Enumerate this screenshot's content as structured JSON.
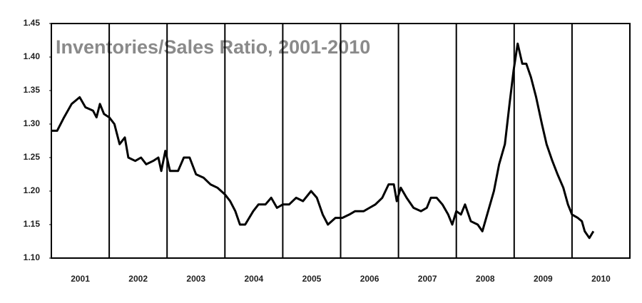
{
  "chart_data": {
    "type": "line",
    "title": "Inventories/Sales Ratio, 2001-2010",
    "x": [
      2001.0,
      2001.1,
      2001.22,
      2001.35,
      2001.49,
      2001.59,
      2001.72,
      2001.78,
      2001.84,
      2001.91,
      2002.0,
      2002.09,
      2002.18,
      2002.27,
      2002.33,
      2002.45,
      2002.55,
      2002.64,
      2002.76,
      2002.85,
      2002.9,
      2002.97,
      2003.05,
      2003.19,
      2003.29,
      2003.39,
      2003.5,
      2003.63,
      2003.75,
      2003.87,
      2004.0,
      2004.09,
      2004.18,
      2004.26,
      2004.35,
      2004.49,
      2004.58,
      2004.7,
      2004.8,
      2004.9,
      2005.0,
      2005.11,
      2005.23,
      2005.35,
      2005.49,
      2005.59,
      2005.69,
      2005.78,
      2005.91,
      2006.03,
      2006.15,
      2006.25,
      2006.4,
      2006.5,
      2006.6,
      2006.72,
      2006.83,
      2006.92,
      2006.97,
      2007.04,
      2007.14,
      2007.26,
      2007.39,
      2007.49,
      2007.56,
      2007.66,
      2007.76,
      2007.86,
      2007.93,
      2008.0,
      2008.08,
      2008.15,
      2008.25,
      2008.37,
      2008.45,
      2008.55,
      2008.65,
      2008.74,
      2008.84,
      2008.92,
      2008.99,
      2009.06,
      2009.14,
      2009.21,
      2009.29,
      2009.38,
      2009.48,
      2009.56,
      2009.66,
      2009.75,
      2009.85,
      2009.93,
      2010.0,
      2010.1,
      2010.17,
      2010.22,
      2010.3,
      2010.37
    ],
    "values": [
      1.29,
      1.29,
      1.31,
      1.33,
      1.34,
      1.325,
      1.32,
      1.31,
      1.33,
      1.315,
      1.31,
      1.3,
      1.27,
      1.28,
      1.25,
      1.245,
      1.25,
      1.24,
      1.245,
      1.25,
      1.23,
      1.26,
      1.23,
      1.23,
      1.25,
      1.25,
      1.225,
      1.22,
      1.21,
      1.205,
      1.195,
      1.185,
      1.17,
      1.15,
      1.15,
      1.17,
      1.18,
      1.18,
      1.19,
      1.175,
      1.18,
      1.18,
      1.19,
      1.185,
      1.2,
      1.19,
      1.165,
      1.15,
      1.16,
      1.16,
      1.165,
      1.17,
      1.17,
      1.175,
      1.18,
      1.19,
      1.21,
      1.21,
      1.185,
      1.205,
      1.19,
      1.175,
      1.17,
      1.175,
      1.19,
      1.19,
      1.18,
      1.165,
      1.15,
      1.17,
      1.165,
      1.18,
      1.155,
      1.15,
      1.14,
      1.17,
      1.2,
      1.24,
      1.27,
      1.33,
      1.38,
      1.42,
      1.39,
      1.39,
      1.37,
      1.34,
      1.3,
      1.27,
      1.245,
      1.225,
      1.205,
      1.18,
      1.165,
      1.16,
      1.155,
      1.14,
      1.13,
      1.14
    ],
    "color": "#000000",
    "xlim": [
      2001,
      2011
    ],
    "xticks": [
      {
        "value": 2001.5,
        "label": "2001"
      },
      {
        "value": 2002.5,
        "label": "2002"
      },
      {
        "value": 2003.5,
        "label": "2003"
      },
      {
        "value": 2004.5,
        "label": "2004"
      },
      {
        "value": 2005.5,
        "label": "2005"
      },
      {
        "value": 2006.5,
        "label": "2006"
      },
      {
        "value": 2007.5,
        "label": "2007"
      },
      {
        "value": 2008.5,
        "label": "2008"
      },
      {
        "value": 2009.5,
        "label": "2009"
      },
      {
        "value": 2010.5,
        "label": "2010"
      }
    ],
    "xgrid": [
      2002,
      2003,
      2004,
      2005,
      2006,
      2007,
      2008,
      2009,
      2010
    ],
    "ylim": [
      1.1,
      1.45
    ],
    "yticks": [
      {
        "value": 1.1,
        "label": "1.10"
      },
      1.15,
      {
        "value": 1.2,
        "label": "1.20"
      },
      1.25,
      {
        "value": 1.3,
        "label": "1.30"
      },
      1.35,
      {
        "value": 1.4,
        "label": "1.40"
      },
      1.45
    ]
  }
}
